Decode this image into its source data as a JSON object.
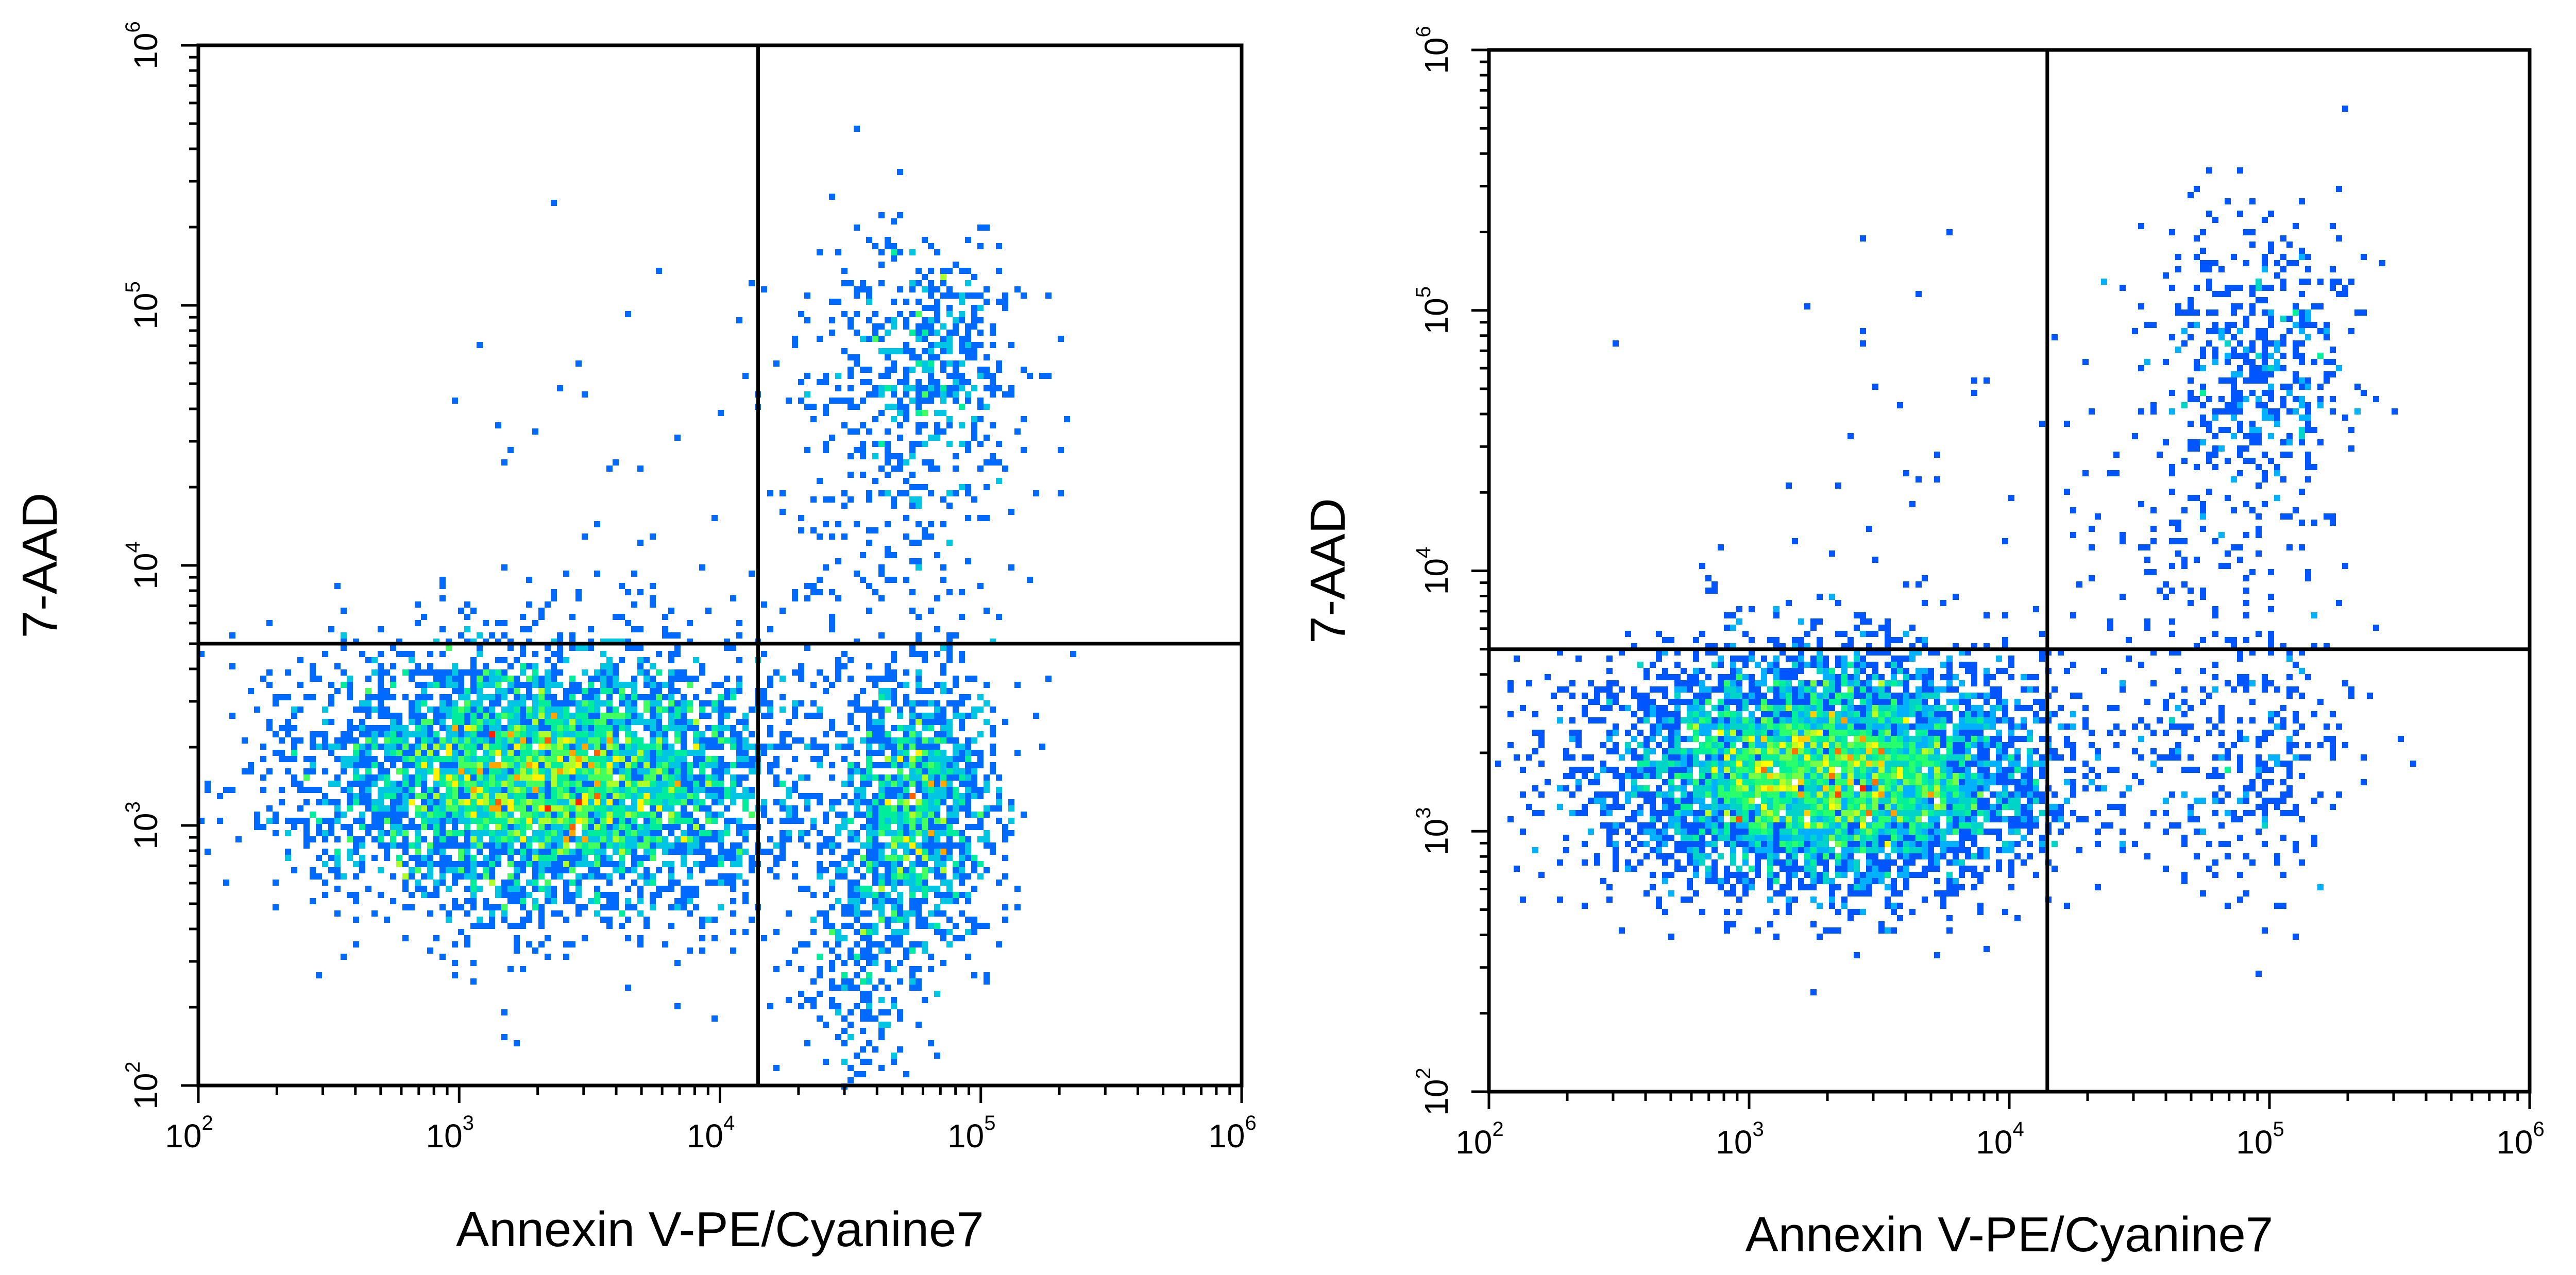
{
  "chart_data": [
    {
      "type": "scatter",
      "subtype": "flow-cytometry-density-dot-plot",
      "title": "",
      "xlabel": "Annexin V-PE/Cyanine7",
      "ylabel": "7-AAD",
      "xscale": "log",
      "yscale": "log",
      "xlim": [
        100,
        1000000
      ],
      "ylim": [
        100,
        1000000
      ],
      "x_ticks": [
        {
          "base": "10",
          "exp": "2"
        },
        {
          "base": "10",
          "exp": "3"
        },
        {
          "base": "10",
          "exp": "4"
        },
        {
          "base": "10",
          "exp": "5"
        },
        {
          "base": "10",
          "exp": "6"
        }
      ],
      "y_ticks": [
        {
          "base": "10",
          "exp": "2"
        },
        {
          "base": "10",
          "exp": "3"
        },
        {
          "base": "10",
          "exp": "4"
        },
        {
          "base": "10",
          "exp": "5"
        },
        {
          "base": "10",
          "exp": "6"
        }
      ],
      "quadrant_gate": {
        "x": 14000,
        "y": 5000
      },
      "grid": false,
      "legend": "none",
      "color_scale": [
        "#0000ff",
        "#00b4ff",
        "#00ff80",
        "#ffff00",
        "#ff2000"
      ],
      "populations": [
        {
          "x_center": 2200,
          "y_center": 1500,
          "x_spread_decades": 0.45,
          "y_spread_decades": 0.25,
          "events": 5200
        },
        {
          "x_center": 55000,
          "y_center": 1200,
          "x_spread_decades": 0.16,
          "y_spread_decades": 0.28,
          "events": 1300
        },
        {
          "x_center": 35000,
          "y_center": 300,
          "x_spread_decades": 0.12,
          "y_spread_decades": 0.25,
          "events": 260
        },
        {
          "x_center": 60000,
          "y_center": 60000,
          "x_spread_decades": 0.17,
          "y_spread_decades": 0.24,
          "events": 460
        },
        {
          "x_center": 45000,
          "y_center": 20000,
          "x_spread_decades": 0.25,
          "y_spread_decades": 0.35,
          "events": 180
        },
        {
          "x_center": 7000,
          "y_center": 25000,
          "x_spread_decades": 0.5,
          "y_spread_decades": 0.5,
          "events": 45
        }
      ]
    },
    {
      "type": "scatter",
      "subtype": "flow-cytometry-density-dot-plot",
      "title": "",
      "xlabel": "Annexin V-PE/Cyanine7",
      "ylabel": "7-AAD",
      "xscale": "log",
      "yscale": "log",
      "xlim": [
        100,
        1000000
      ],
      "ylim": [
        100,
        1000000
      ],
      "x_ticks": [
        {
          "base": "10",
          "exp": "2"
        },
        {
          "base": "10",
          "exp": "3"
        },
        {
          "base": "10",
          "exp": "4"
        },
        {
          "base": "10",
          "exp": "5"
        },
        {
          "base": "10",
          "exp": "6"
        }
      ],
      "y_ticks": [
        {
          "base": "10",
          "exp": "2"
        },
        {
          "base": "10",
          "exp": "3"
        },
        {
          "base": "10",
          "exp": "4"
        },
        {
          "base": "10",
          "exp": "5"
        },
        {
          "base": "10",
          "exp": "6"
        }
      ],
      "quadrant_gate": {
        "x": 14000,
        "y": 5000
      },
      "grid": false,
      "legend": "none",
      "color_scale": [
        "#0000ff",
        "#00b4ff",
        "#00ff80",
        "#ffff00",
        "#ff2000"
      ],
      "populations": [
        {
          "x_center": 2000,
          "y_center": 1700,
          "x_spread_decades": 0.42,
          "y_spread_decades": 0.22,
          "events": 6000
        },
        {
          "x_center": 80000,
          "y_center": 2000,
          "x_spread_decades": 0.22,
          "y_spread_decades": 0.28,
          "events": 320
        },
        {
          "x_center": 90000,
          "y_center": 70000,
          "x_spread_decades": 0.2,
          "y_spread_decades": 0.25,
          "events": 420
        },
        {
          "x_center": 60000,
          "y_center": 15000,
          "x_spread_decades": 0.28,
          "y_spread_decades": 0.35,
          "events": 160
        },
        {
          "x_center": 6000,
          "y_center": 20000,
          "x_spread_decades": 0.45,
          "y_spread_decades": 0.45,
          "events": 40
        }
      ]
    }
  ]
}
